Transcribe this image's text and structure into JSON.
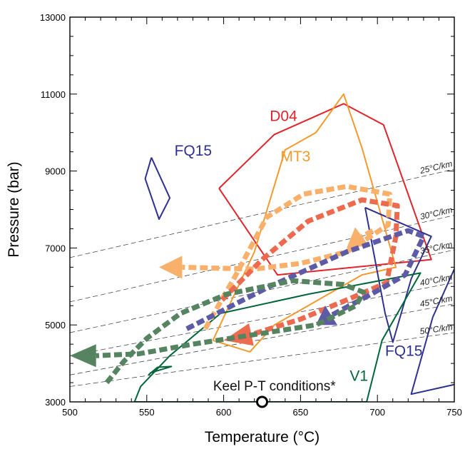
{
  "chart_data": {
    "type": "line",
    "title": "",
    "xlabel": "Temperature (°C)",
    "ylabel": "Pressure (bar)",
    "xlim": [
      500,
      750
    ],
    "ylim": [
      3000,
      13000
    ],
    "x_ticks": [
      500,
      550,
      600,
      650,
      700,
      750
    ],
    "y_ticks": [
      3000,
      5000,
      7000,
      9000,
      11000,
      13000
    ],
    "x_tick_labels": [
      "500",
      "550",
      "600",
      "650",
      "700",
      "750"
    ],
    "y_tick_labels": [
      "3000",
      "5000",
      "7000",
      "9000",
      "11000",
      "13000"
    ],
    "grid": false,
    "colors": {
      "D04": "#e0242b",
      "MT3": "#f39a2c",
      "FQ15": "#2e3190",
      "V1": "#00663a",
      "path_orange_light": "#f8b06a",
      "path_red": "#ee6a4e",
      "path_blue": "#5d5aa6",
      "path_green": "#568460",
      "geotherm": "#333333"
    },
    "geotherms": [
      {
        "label": "25°C/km",
        "points": [
          [
            500,
            6750
          ],
          [
            750,
            9050
          ]
        ]
      },
      {
        "label": "30°C/km",
        "points": [
          [
            500,
            5600
          ],
          [
            750,
            7850
          ]
        ]
      },
      {
        "label": "35°C/km",
        "points": [
          [
            500,
            4800
          ],
          [
            750,
            6950
          ]
        ]
      },
      {
        "label": "40°C/km",
        "points": [
          [
            500,
            4200
          ],
          [
            750,
            6100
          ]
        ]
      },
      {
        "label": "45°C/km",
        "points": [
          [
            500,
            3700
          ],
          [
            750,
            5550
          ]
        ]
      },
      {
        "label": "50°C/km",
        "points": [
          [
            500,
            3400
          ],
          [
            750,
            4800
          ]
        ]
      }
    ],
    "fields": [
      {
        "label": "D04",
        "points": [
          [
            597,
            8550
          ],
          [
            633,
            9950
          ],
          [
            678,
            10750
          ],
          [
            704,
            10200
          ],
          [
            735,
            6700
          ],
          [
            635,
            6300
          ],
          [
            597,
            8550
          ]
        ]
      },
      {
        "label": "MT3",
        "points": [
          [
            593,
            4600
          ],
          [
            620,
            6900
          ],
          [
            640,
            9550
          ],
          [
            660,
            10000
          ],
          [
            678,
            11000
          ],
          [
            690,
            9600
          ],
          [
            712,
            6500
          ],
          [
            690,
            6300
          ],
          [
            633,
            5000
          ],
          [
            617,
            4300
          ],
          [
            593,
            4600
          ]
        ]
      },
      {
        "label": "FQ15",
        "points": [
          [
            553,
            9350
          ],
          [
            565,
            8300
          ],
          [
            558,
            7750
          ],
          [
            549,
            8800
          ],
          [
            553,
            9350
          ]
        ]
      },
      {
        "label": "FQ15",
        "points": [
          [
            692,
            8050
          ],
          [
            735,
            7300
          ],
          [
            722,
            6200
          ],
          [
            710,
            4550
          ],
          [
            705,
            5300
          ],
          [
            692,
            8050
          ]
        ]
      },
      {
        "label": "FQ15",
        "points": [
          [
            750,
            6450
          ],
          [
            736,
            5200
          ],
          [
            722,
            3200
          ],
          [
            750,
            3450
          ]
        ]
      },
      {
        "label": "V1",
        "points": [
          [
            542,
            3000
          ],
          [
            546,
            3400
          ],
          [
            565,
            4200
          ],
          [
            598,
            5300
          ],
          [
            655,
            5800
          ],
          [
            728,
            6350
          ],
          [
            703,
            4600
          ],
          [
            693,
            3000
          ],
          [
            542,
            3000
          ]
        ]
      },
      {
        "label": "",
        "points": [
          [
            551,
            3700
          ],
          [
            557,
            3900
          ],
          [
            566,
            3920
          ],
          [
            552,
            3750
          ]
        ]
      }
    ],
    "paths": [
      {
        "color": "path_orange_light",
        "points": [
          [
            588,
            4900
          ],
          [
            608,
            6300
          ],
          [
            628,
            7800
          ],
          [
            652,
            8400
          ],
          [
            680,
            8600
          ],
          [
            708,
            8400
          ],
          [
            707,
            7600
          ],
          [
            680,
            6900
          ],
          [
            650,
            6600
          ],
          [
            620,
            6450
          ],
          [
            573,
            6500
          ]
        ],
        "arrow_tip": [
          558,
          6500
        ]
      },
      {
        "color": "path_orange_light",
        "points": [
          [
            697,
            7450
          ],
          [
            690,
            7300
          ]
        ],
        "arrow_tip": [
          680,
          7000
        ]
      },
      {
        "color": "path_red",
        "points": [
          [
            599,
            5650
          ],
          [
            625,
            6700
          ],
          [
            655,
            7700
          ],
          [
            690,
            8250
          ],
          [
            713,
            8100
          ],
          [
            712,
            7300
          ],
          [
            706,
            6100
          ],
          [
            683,
            5700
          ],
          [
            650,
            5150
          ],
          [
            618,
            4750
          ]
        ],
        "arrow_tip": [
          600,
          4600
        ]
      },
      {
        "color": "path_blue",
        "points": [
          [
            576,
            4900
          ],
          [
            630,
            6000
          ],
          [
            680,
            6900
          ],
          [
            720,
            7450
          ],
          [
            730,
            7300
          ],
          [
            718,
            6300
          ],
          [
            696,
            5800
          ],
          [
            670,
            5250
          ]
        ],
        "arrow_tip": [
          660,
          5000
        ]
      },
      {
        "color": "path_green",
        "points": [
          [
            524,
            3500
          ],
          [
            535,
            4050
          ],
          [
            550,
            4650
          ],
          [
            572,
            5300
          ],
          [
            602,
            5800
          ],
          [
            645,
            6150
          ],
          [
            678,
            6050
          ],
          [
            691,
            5850
          ],
          [
            686,
            5500
          ],
          [
            660,
            5000
          ],
          [
            620,
            4750
          ],
          [
            580,
            4500
          ],
          [
            545,
            4250
          ],
          [
            517,
            4200
          ]
        ],
        "arrow_tip": [
          500,
          4200
        ]
      }
    ],
    "keel_point": {
      "x": 625,
      "y": 3000
    },
    "annotations": [
      {
        "text": "D04",
        "x": 630,
        "y": 10300,
        "color": "D04"
      },
      {
        "text": "MT3",
        "x": 637,
        "y": 9250,
        "color": "MT3"
      },
      {
        "text": "FQ15",
        "x": 568,
        "y": 9400,
        "color": "FQ15"
      },
      {
        "text": "FQ15",
        "x": 705,
        "y": 4200,
        "color": "FQ15"
      },
      {
        "text": "V1",
        "x": 682,
        "y": 3550,
        "color": "V1"
      },
      {
        "text": "Keel P-T conditions*",
        "x": 633,
        "y": 3300,
        "color": ""
      }
    ]
  }
}
